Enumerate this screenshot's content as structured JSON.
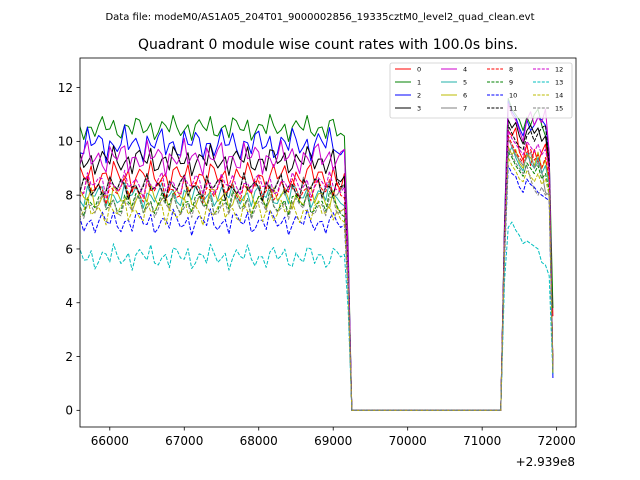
{
  "suptitle": "Data file: modeM0/AS1A05_204T01_9000002856_19335cztM0_level2_quad_clean.evt",
  "chart_data": {
    "type": "line",
    "title": "Quadrant 0 module wise count rates with 100.0s bins.",
    "xlabel": "",
    "ylabel": "",
    "x_offset_label": "+2.939e8",
    "xlim": [
      65600,
      72260
    ],
    "ylim": [
      -0.62,
      13.1
    ],
    "x_ticks": [
      66000,
      67000,
      68000,
      69000,
      70000,
      71000,
      72000
    ],
    "x_tick_labels": [
      "66000",
      "67000",
      "68000",
      "69000",
      "70000",
      "71000",
      "72000"
    ],
    "y_ticks": [
      0,
      2,
      4,
      6,
      8,
      10,
      12
    ],
    "y_tick_labels": [
      "0",
      "2",
      "4",
      "6",
      "8",
      "10",
      "12"
    ],
    "grid": false,
    "legend_position": "top-right",
    "x_start": 65550,
    "x_step": 50,
    "segment_a_end": 69200,
    "gap_start": 69250,
    "gap_end": 71250,
    "segment_b_start": 71300,
    "segment_b_end": 71950,
    "series": [
      {
        "name": "0",
        "color": "#ff0000",
        "dash": "solid",
        "mean": 8.7,
        "amp": 0.35,
        "phase": 0.3,
        "end": [
          8.4,
          8.2,
          8.8,
          5.2
        ],
        "b": [
          6.5,
          10.4,
          10.2,
          10.5,
          9.6,
          9.3,
          9.9,
          9.1,
          9.7,
          9.2,
          9.6,
          9.9,
          8.8,
          3.5
        ]
      },
      {
        "name": "1",
        "color": "#008000",
        "dash": "solid",
        "mean": 10.5,
        "amp": 0.3,
        "phase": 1.1,
        "end": [
          10.2,
          10.3,
          10.2,
          6.2
        ],
        "b": [
          7.0,
          11.6,
          11.2,
          11.0,
          10.8,
          10.4,
          10.9,
          10.6,
          11.0,
          11.2,
          10.6,
          10.2,
          9.5,
          3.8
        ]
      },
      {
        "name": "2",
        "color": "#0000ff",
        "dash": "solid",
        "mean": 9.9,
        "amp": 0.4,
        "phase": 2.0,
        "end": [
          9.6,
          9.5,
          9.7,
          5.8
        ],
        "b": [
          6.8,
          11.5,
          11.1,
          10.9,
          10.5,
          10.2,
          10.8,
          10.4,
          10.6,
          10.9,
          10.8,
          10.6,
          9.6,
          1.2
        ]
      },
      {
        "name": "3",
        "color": "#000000",
        "dash": "solid",
        "mean": 9.3,
        "amp": 0.35,
        "phase": 0.7,
        "end": [
          8.6,
          8.5,
          8.7,
          5.5
        ],
        "b": [
          6.6,
          10.8,
          10.5,
          10.7,
          10.2,
          9.9,
          10.4,
          10.6,
          10.3,
          10.5,
          10.0,
          10.2,
          9.1,
          1.4
        ]
      },
      {
        "name": "4",
        "color": "#cc00cc",
        "dash": "solid",
        "mean": 9.4,
        "amp": 0.4,
        "phase": 2.6,
        "end": [
          9.3,
          9.6,
          9.7,
          5.9
        ],
        "b": [
          6.7,
          11.4,
          11.0,
          10.8,
          10.4,
          10.0,
          10.8,
          11.1,
          10.6,
          10.9,
          10.7,
          11.2,
          9.6,
          1.6
        ]
      },
      {
        "name": "5",
        "color": "#20b2aa",
        "dash": "solid",
        "mean": 8.0,
        "amp": 0.3,
        "phase": 1.7,
        "end": [
          7.9,
          7.7,
          7.6,
          4.9
        ],
        "b": [
          6.0,
          9.5,
          9.8,
          9.4,
          9.1,
          8.9,
          9.6,
          9.2,
          9.0,
          9.4,
          8.8,
          9.1,
          8.4,
          1.5
        ]
      },
      {
        "name": "6",
        "color": "#bbbb00",
        "dash": "solid",
        "mean": 7.9,
        "amp": 0.3,
        "phase": 0.2,
        "end": [
          7.5,
          7.4,
          7.5,
          4.8
        ],
        "b": [
          6.0,
          9.8,
          9.5,
          9.7,
          9.2,
          9.0,
          9.5,
          9.4,
          9.1,
          9.6,
          9.0,
          9.3,
          8.5,
          1.7
        ]
      },
      {
        "name": "7",
        "color": "#808080",
        "dash": "solid",
        "mean": 8.3,
        "amp": 0.3,
        "phase": 3.0,
        "end": [
          8.0,
          8.2,
          8.4,
          5.0
        ],
        "b": [
          6.2,
          10.1,
          9.8,
          9.5,
          9.3,
          9.1,
          9.4,
          9.6,
          9.0,
          9.2,
          8.9,
          8.1,
          8.0,
          1.5
        ]
      },
      {
        "name": "8",
        "color": "#ff0000",
        "dash": "dashed",
        "mean": 8.2,
        "amp": 0.3,
        "phase": 2.2,
        "end": [
          8.5,
          8.0,
          7.9,
          4.9
        ],
        "b": [
          6.3,
          10.2,
          9.9,
          9.6,
          9.4,
          9.2,
          9.6,
          9.7,
          9.3,
          9.5,
          9.0,
          9.4,
          8.6,
          1.6
        ]
      },
      {
        "name": "9",
        "color": "#008000",
        "dash": "dashed",
        "mean": 7.7,
        "amp": 0.3,
        "phase": 1.4,
        "end": [
          7.6,
          7.3,
          7.2,
          4.6
        ],
        "b": [
          5.9,
          9.6,
          9.4,
          9.1,
          8.9,
          8.7,
          9.2,
          9.0,
          8.8,
          9.1,
          8.6,
          8.8,
          8.2,
          1.5
        ]
      },
      {
        "name": "10",
        "color": "#0000ff",
        "dash": "dashed",
        "mean": 7.0,
        "amp": 0.3,
        "phase": 0.9,
        "end": [
          7.0,
          6.8,
          6.9,
          4.4
        ],
        "b": [
          5.6,
          9.1,
          8.8,
          8.7,
          8.3,
          8.1,
          8.6,
          8.4,
          8.3,
          8.1,
          8.0,
          7.9,
          7.8,
          1.3
        ]
      },
      {
        "name": "11",
        "color": "#000000",
        "dash": "dashed",
        "mean": 8.3,
        "amp": 0.3,
        "phase": 2.9,
        "end": [
          8.6,
          8.3,
          8.4,
          5.1
        ],
        "b": [
          6.4,
          10.6,
          10.3,
          10.0,
          9.8,
          9.7,
          10.2,
          10.4,
          10.0,
          10.3,
          10.5,
          10.6,
          9.2,
          1.6
        ]
      },
      {
        "name": "12",
        "color": "#cc00cc",
        "dash": "dashed",
        "mean": 8.4,
        "amp": 0.3,
        "phase": 1.9,
        "end": [
          8.2,
          8.1,
          8.3,
          5.1
        ],
        "b": [
          6.4,
          10.4,
          10.1,
          9.9,
          9.7,
          9.5,
          10.0,
          9.8,
          9.6,
          9.9,
          9.5,
          9.7,
          8.9,
          1.6
        ]
      },
      {
        "name": "13",
        "color": "#00bfbf",
        "dash": "dashed",
        "mean": 5.7,
        "amp": 0.3,
        "phase": 0.5,
        "end": [
          5.9,
          5.7,
          5.8,
          3.8
        ],
        "b": [
          4.8,
          6.8,
          7.0,
          6.7,
          6.5,
          6.2,
          6.3,
          6.2,
          6.1,
          6.0,
          5.5,
          5.4,
          5.0,
          1.3
        ]
      },
      {
        "name": "14",
        "color": "#bbbb00",
        "dash": "dashed",
        "mean": 7.4,
        "amp": 0.3,
        "phase": 2.4,
        "end": [
          7.4,
          7.1,
          7.0,
          4.5
        ],
        "b": [
          5.8,
          9.4,
          9.1,
          8.9,
          8.6,
          8.5,
          8.9,
          8.7,
          8.5,
          8.8,
          8.4,
          8.6,
          8.0,
          1.4
        ]
      },
      {
        "name": "15",
        "color": "#808080",
        "dash": "dashed",
        "mean": 7.6,
        "amp": 0.3,
        "phase": 1.2,
        "end": [
          7.3,
          7.4,
          7.5,
          4.7
        ],
        "b": [
          5.9,
          9.7,
          9.5,
          9.2,
          9.0,
          8.8,
          9.1,
          8.6,
          8.2,
          8.0,
          8.3,
          8.0,
          8.1,
          1.5
        ]
      }
    ]
  }
}
